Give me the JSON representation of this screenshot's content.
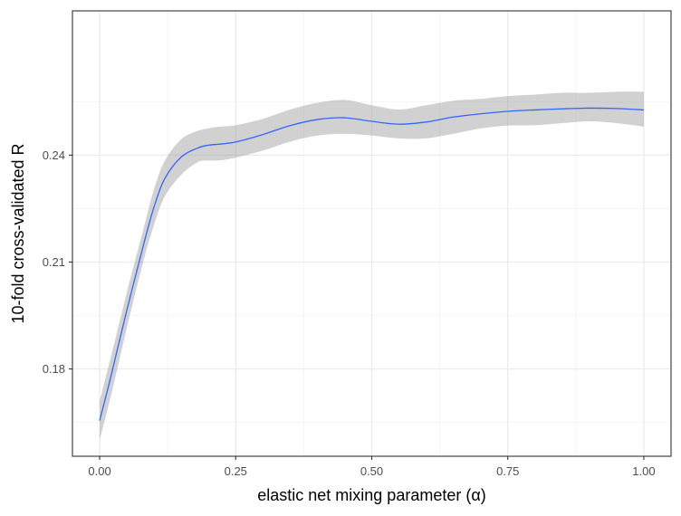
{
  "chart_data": {
    "type": "line",
    "xlabel": "elastic net mixing parameter (α)",
    "ylabel": "10-fold cross-validated R",
    "xlim": [
      -0.05,
      1.05
    ],
    "ylim": [
      0.1555,
      0.2805
    ],
    "x_ticks": [
      0.0,
      0.25,
      0.5,
      0.75,
      1.0
    ],
    "x_tick_labels": [
      "0.00",
      "0.25",
      "0.50",
      "0.75",
      "1.00"
    ],
    "y_ticks": [
      0.18,
      0.21,
      0.24
    ],
    "y_tick_labels": [
      "0.18",
      "0.21",
      "0.24"
    ],
    "grid": true,
    "series": [
      {
        "color": "#3366FF",
        "band_color": "#999999",
        "x": [
          0.0,
          0.02,
          0.05,
          0.08,
          0.1,
          0.12,
          0.15,
          0.18,
          0.2,
          0.22,
          0.25,
          0.3,
          0.35,
          0.4,
          0.45,
          0.5,
          0.55,
          0.6,
          0.65,
          0.7,
          0.75,
          0.8,
          0.85,
          0.9,
          0.95,
          1.0
        ],
        "y": [
          0.1655,
          0.1775,
          0.1965,
          0.2145,
          0.2255,
          0.2335,
          0.2395,
          0.242,
          0.2428,
          0.2431,
          0.2437,
          0.2458,
          0.2483,
          0.25,
          0.2505,
          0.2495,
          0.2487,
          0.2493,
          0.2507,
          0.2516,
          0.2523,
          0.2527,
          0.253,
          0.2532,
          0.2531,
          0.2527
        ],
        "lower": [
          0.16,
          0.172,
          0.1915,
          0.21,
          0.2205,
          0.2285,
          0.2345,
          0.238,
          0.2385,
          0.2385,
          0.2393,
          0.2413,
          0.2438,
          0.2455,
          0.246,
          0.2455,
          0.2447,
          0.2447,
          0.246,
          0.2475,
          0.2483,
          0.2484,
          0.249,
          0.2495,
          0.249,
          0.248
        ],
        "upper": [
          0.171,
          0.183,
          0.2015,
          0.219,
          0.2305,
          0.2385,
          0.2445,
          0.2468,
          0.2475,
          0.248,
          0.2484,
          0.2502,
          0.2528,
          0.2547,
          0.2555,
          0.254,
          0.2528,
          0.254,
          0.2553,
          0.2558,
          0.2566,
          0.257,
          0.2575,
          0.2575,
          0.2578,
          0.2578
        ]
      }
    ]
  }
}
